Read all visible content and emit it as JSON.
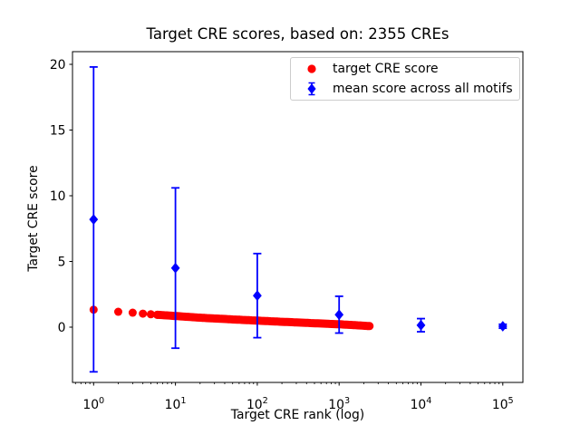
{
  "figure": {
    "title": "Target CRE scores, based on: 2355 CREs"
  },
  "axes": {
    "xlabel": "Target CRE rank (log)",
    "ylabel": "Target CRE score",
    "x_scale": "log",
    "xlim": [
      0.55,
      176000
    ],
    "ylim": [
      -4.2,
      21
    ],
    "x_tick_exponents": [
      0,
      1,
      2,
      3,
      4,
      5
    ],
    "x_tick_base": "10",
    "y_ticks": [
      0,
      5,
      10,
      15,
      20
    ],
    "grid": false
  },
  "legend": {
    "position": "upper right",
    "entries": [
      {
        "label": "target CRE score",
        "marker": "circle-icon",
        "color": "#ff0000"
      },
      {
        "label": "mean score across all motifs",
        "marker": "diamond-errorbar-icon",
        "color": "#0000ff"
      }
    ]
  },
  "colors": {
    "red_series": "#ff0000",
    "blue_series": "#0000ff",
    "frame": "#000000",
    "background": "#ffffff",
    "legend_border": "#cccccc"
  },
  "chart_data": {
    "type": "scatter",
    "title": "Target CRE scores, based on: 2355 CREs",
    "xlabel": "Target CRE rank (log)",
    "ylabel": "Target CRE score",
    "x_scale": "log",
    "xlim": [
      0.55,
      176000
    ],
    "ylim": [
      -4.2,
      21
    ],
    "legend_position": "upper right",
    "series": [
      {
        "name": "target CRE score",
        "marker": "circle",
        "color": "#ff0000",
        "n_points": 2355,
        "rank_range": [
          1,
          2355
        ],
        "x_anchors": [
          1,
          2,
          3,
          4,
          5,
          6,
          8,
          10,
          20,
          50,
          100,
          200,
          500,
          1000,
          1500,
          2000,
          2355
        ],
        "y_anchors": [
          1.33,
          1.17,
          1.1,
          1.03,
          0.98,
          0.94,
          0.89,
          0.85,
          0.72,
          0.59,
          0.5,
          0.41,
          0.3,
          0.22,
          0.16,
          0.11,
          0.08
        ],
        "note": "one point per rank 1..2355; scores interpolated log-linearly between anchors"
      },
      {
        "name": "mean score across all motifs",
        "marker": "diamond",
        "color": "#0000ff",
        "x": [
          1,
          10,
          100,
          1000,
          10000,
          100000
        ],
        "y": [
          8.2,
          4.5,
          2.4,
          0.95,
          0.15,
          0.07
        ],
        "yerr": [
          11.6,
          6.1,
          3.2,
          1.4,
          0.5,
          0.15
        ]
      }
    ]
  }
}
